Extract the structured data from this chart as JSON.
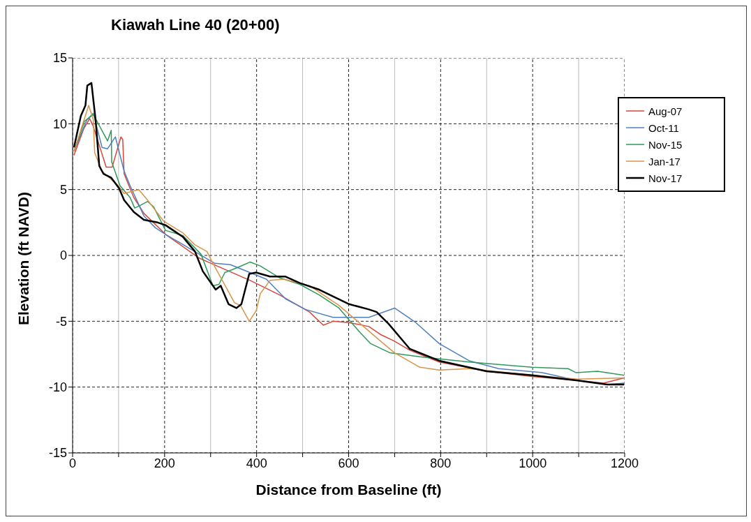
{
  "chart_data": {
    "type": "line",
    "title": "Kiawah Line 40 (20+00)",
    "xlabel": "Distance from Baseline (ft)",
    "ylabel": "Elevation (ft NAVD)",
    "xlim": [
      0,
      1200
    ],
    "xticks": [
      0,
      {
        "value": 100,
        "label": null
      },
      200,
      {
        "value": 300,
        "label": null
      },
      400,
      {
        "value": 500,
        "label": null
      },
      600,
      {
        "value": 700,
        "label": null
      },
      800,
      {
        "value": 900,
        "label": null
      },
      1000,
      {
        "value": 1100,
        "label": null
      },
      1200
    ],
    "ylim": [
      -15,
      15
    ],
    "yticks": [
      -15,
      -10,
      -5,
      0,
      5,
      10,
      15
    ],
    "grid": true,
    "legend": "top right",
    "marker": "none",
    "line_style": "solid",
    "series": [
      {
        "name": "Aug-07",
        "color": "#d9453a",
        "x": [
          3,
          24,
          37,
          45,
          73,
          86,
          105,
          109,
          112,
          133,
          155,
          202,
          275,
          301,
          386,
          450,
          515,
          545,
          566,
          601,
          644,
          669,
          699,
          733,
          797,
          900,
          999,
          1098,
          1154,
          1199
        ],
        "values": [
          7.6,
          9.6,
          10.4,
          9.8,
          6.7,
          6.7,
          9.0,
          8.8,
          6.2,
          4.4,
          3.2,
          1.6,
          -0.2,
          -0.6,
          -1.9,
          -3.0,
          -4.3,
          -5.3,
          -5.0,
          -5.1,
          -5.4,
          -6.0,
          -6.5,
          -7.2,
          -8.1,
          -8.8,
          -9.2,
          -9.5,
          -9.7,
          -9.3
        ]
      },
      {
        "name": "Oct-11",
        "color": "#4f7fc0",
        "x": [
          3,
          31,
          45,
          64,
          76,
          93,
          112,
          125,
          155,
          180,
          202,
          275,
          309,
          343,
          421,
          463,
          506,
          566,
          644,
          700,
          746,
          797,
          862,
          926,
          1021,
          1098,
          1162,
          1199
        ],
        "values": [
          7.9,
          10.3,
          10.8,
          8.2,
          8.1,
          9.0,
          6.4,
          5.3,
          3.0,
          2.1,
          1.6,
          0.1,
          -0.6,
          -0.7,
          -1.8,
          -3.3,
          -4.1,
          -4.7,
          -4.7,
          -4.0,
          -5.1,
          -6.7,
          -8.0,
          -8.6,
          -8.9,
          -9.5,
          -9.8,
          -9.7
        ]
      },
      {
        "name": "Nov-15",
        "color": "#2e9a5a",
        "x": [
          3,
          26,
          45,
          76,
          84,
          85,
          103,
          125,
          135,
          147,
          163,
          176,
          202,
          240,
          279,
          305,
          318,
          331,
          360,
          386,
          408,
          450,
          494,
          536,
          579,
          601,
          626,
          648,
          690,
          755,
          862,
          999,
          1077,
          1094,
          1141,
          1199
        ],
        "values": [
          7.9,
          10.2,
          10.7,
          8.7,
          9.5,
          7.1,
          5.3,
          4.4,
          3.6,
          3.8,
          4.1,
          3.7,
          1.9,
          1.5,
          0.1,
          -2.3,
          -2.2,
          -1.3,
          -0.9,
          -0.5,
          -0.8,
          -1.7,
          -2.2,
          -3.0,
          -4.0,
          -4.9,
          -5.9,
          -6.7,
          -7.4,
          -7.7,
          -8.1,
          -8.5,
          -8.6,
          -8.9,
          -8.8,
          -9.1
        ]
      },
      {
        "name": "Jan-17",
        "color": "#d9944a",
        "x": [
          3,
          35,
          45,
          48,
          64,
          99,
          112,
          144,
          163,
          198,
          240,
          266,
          292,
          305,
          327,
          352,
          365,
          384,
          399,
          408,
          429,
          459,
          515,
          579,
          626,
          669,
          700,
          755,
          797,
          862,
          999,
          1098,
          1199
        ],
        "values": [
          7.9,
          11.4,
          10.3,
          7.8,
          6.4,
          5.3,
          4.7,
          5.0,
          4.2,
          2.6,
          1.7,
          0.8,
          0.3,
          -0.6,
          -2.0,
          -3.6,
          -3.8,
          -5.0,
          -4.2,
          -2.9,
          -1.9,
          -1.8,
          -2.3,
          -3.8,
          -5.2,
          -6.5,
          -7.4,
          -8.5,
          -8.7,
          -8.6,
          -9.1,
          -9.4,
          -9.3
        ]
      },
      {
        "name": "Nov-17",
        "color": "#000000",
        "x": [
          3,
          18,
          28,
          32,
          41,
          50,
          58,
          67,
          84,
          101,
          112,
          133,
          155,
          185,
          202,
          240,
          266,
          283,
          311,
          322,
          339,
          356,
          367,
          384,
          399,
          429,
          462,
          494,
          536,
          601,
          644,
          661,
          687,
          716,
          733,
          797,
          900,
          999,
          1098,
          1162,
          1199
        ],
        "values": [
          8.2,
          10.6,
          11.4,
          12.9,
          13.1,
          10.3,
          6.8,
          6.2,
          5.9,
          5.1,
          4.2,
          3.3,
          2.7,
          2.5,
          2.3,
          1.4,
          0.3,
          -1.2,
          -2.6,
          -2.3,
          -3.7,
          -4.0,
          -3.7,
          -1.4,
          -1.3,
          -1.6,
          -1.6,
          -2.1,
          -2.6,
          -3.7,
          -4.1,
          -4.3,
          -5.2,
          -6.4,
          -7.1,
          -8.0,
          -8.8,
          -9.1,
          -9.5,
          -9.8,
          -9.8
        ]
      }
    ]
  }
}
